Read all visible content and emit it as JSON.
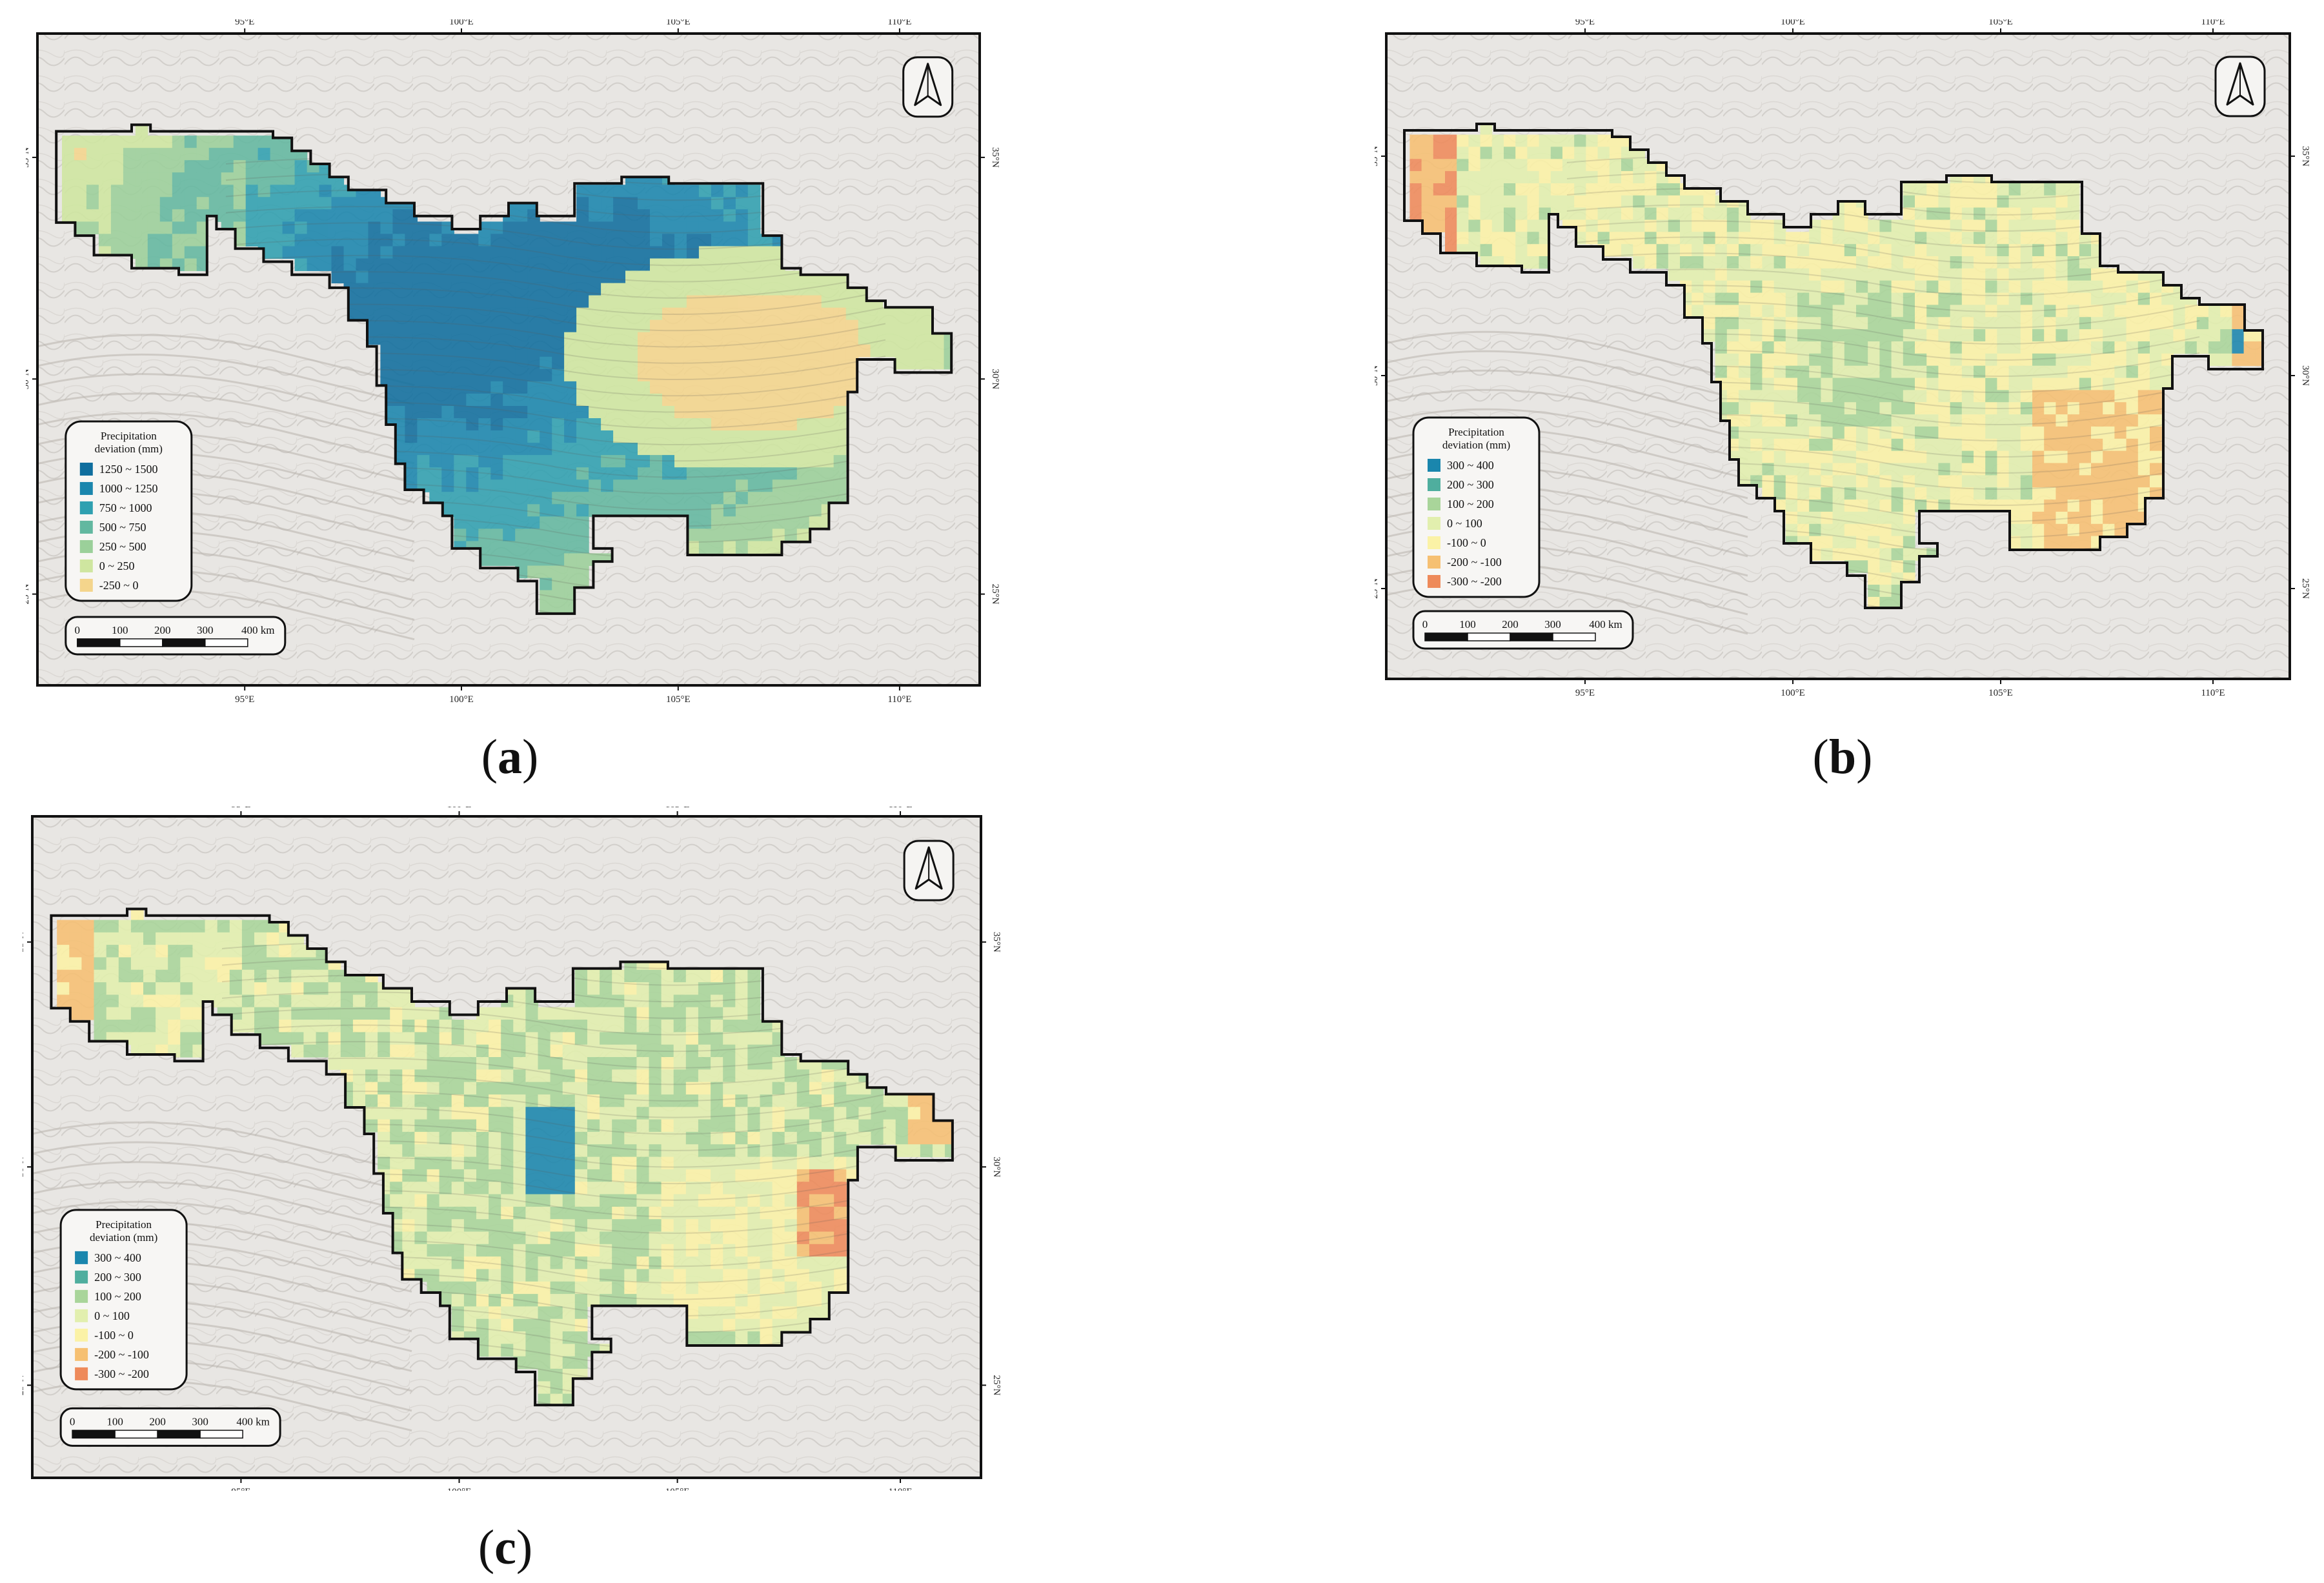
{
  "figure": {
    "lon_labels": [
      "95°E",
      "100°E",
      "105°E",
      "110°E"
    ],
    "lat_labels": [
      "35°N",
      "30°N",
      "25°N"
    ],
    "legend_title_line1": "Precipitation",
    "legend_title_line2": "deviation (mm)",
    "scalebar_labels": [
      "0",
      "100",
      "200",
      "300",
      "400 km"
    ],
    "north_arrow": "north-arrow-icon"
  },
  "panels": [
    {
      "id": "a",
      "caption_open": "(",
      "caption_letter": "a",
      "caption_close": ")",
      "legend": [
        {
          "label": "1250 ~ 1500",
          "color": "#0f6e9e"
        },
        {
          "label": "1000 ~ 1250",
          "color": "#1a86ad"
        },
        {
          "label": "750 ~ 1000",
          "color": "#2fa0b0"
        },
        {
          "label": "500 ~ 750",
          "color": "#62b8a0"
        },
        {
          "label": "250 ~ 500",
          "color": "#9bd09a"
        },
        {
          "label": "0 ~ 250",
          "color": "#cfe6a0"
        },
        {
          "label": "-250 ~ 0",
          "color": "#f4d58c"
        }
      ]
    },
    {
      "id": "b",
      "caption_open": "(",
      "caption_letter": "b",
      "caption_close": ")",
      "legend": [
        {
          "label": "300 ~ 400",
          "color": "#1a86ad"
        },
        {
          "label": "200 ~ 300",
          "color": "#4fae9e"
        },
        {
          "label": "100 ~ 200",
          "color": "#a9d59a"
        },
        {
          "label": "0 ~ 100",
          "color": "#e2efae"
        },
        {
          "label": "-100 ~ 0",
          "color": "#fbf2a6"
        },
        {
          "label": "-200 ~ -100",
          "color": "#f6c072"
        },
        {
          "label": "-300 ~ -200",
          "color": "#ee8a5a"
        }
      ]
    },
    {
      "id": "c",
      "caption_open": "(",
      "caption_letter": "c",
      "caption_close": ")",
      "legend": [
        {
          "label": "300 ~ 400",
          "color": "#1a86ad"
        },
        {
          "label": "200 ~ 300",
          "color": "#4fae9e"
        },
        {
          "label": "100 ~ 200",
          "color": "#a9d59a"
        },
        {
          "label": "0 ~ 100",
          "color": "#e2efae"
        },
        {
          "label": "-100 ~ 0",
          "color": "#fbf2a6"
        },
        {
          "label": "-200 ~ -100",
          "color": "#f6c072"
        },
        {
          "label": "-300 ~ -200",
          "color": "#ee8a5a"
        }
      ]
    }
  ]
}
